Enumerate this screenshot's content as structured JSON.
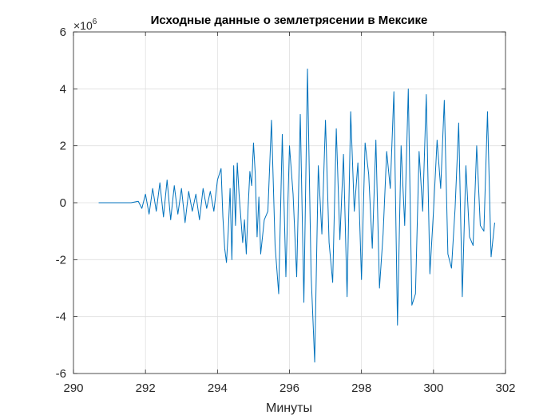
{
  "chart_data": {
    "type": "line",
    "title": "Исходные данные о землетрясении в Мексике",
    "xlabel": "Минуты",
    "ylabel": "",
    "xlim": [
      290,
      302
    ],
    "ylim": [
      -6000000,
      6000000
    ],
    "x_ticks": [
      290,
      292,
      294,
      296,
      298,
      300,
      302
    ],
    "y_ticks": [
      -6,
      -4,
      -2,
      0,
      2,
      4,
      6
    ],
    "y_exponent_label": "×10^6",
    "y_exponent_base": "×10",
    "y_exponent_power": "6",
    "grid": true,
    "line_color": "#0072BD",
    "series": [
      {
        "x": [
          290.7,
          291.2,
          291.6,
          291.8,
          291.9,
          292.0,
          292.1,
          292.2,
          292.3,
          292.4,
          292.5,
          292.6,
          292.7,
          292.8,
          292.9,
          293.0,
          293.1,
          293.2,
          293.3,
          293.4,
          293.5,
          293.6,
          293.7,
          293.8,
          293.9,
          294.0,
          294.1,
          294.15,
          294.2,
          294.25,
          294.3,
          294.35,
          294.4,
          294.45,
          294.5,
          294.55,
          294.6,
          294.7,
          294.75,
          294.8,
          294.85,
          294.9,
          294.95,
          295.0,
          295.05,
          295.1,
          295.15,
          295.2,
          295.3,
          295.4,
          295.5,
          295.6,
          295.7,
          295.8,
          295.9,
          296.0,
          296.1,
          296.2,
          296.3,
          296.4,
          296.5,
          296.6,
          296.7,
          296.8,
          296.9,
          297.0,
          297.1,
          297.2,
          297.3,
          297.4,
          297.5,
          297.6,
          297.7,
          297.8,
          297.9,
          298.0,
          298.1,
          298.2,
          298.3,
          298.4,
          298.5,
          298.6,
          298.7,
          298.8,
          298.9,
          299.0,
          299.1,
          299.2,
          299.3,
          299.4,
          299.5,
          299.6,
          299.7,
          299.8,
          299.9,
          300.0,
          300.1,
          300.2,
          300.3,
          300.4,
          300.5,
          300.6,
          300.7,
          300.8,
          300.9,
          301.0,
          301.1,
          301.2,
          301.3,
          301.4,
          301.5,
          301.6,
          301.7
        ],
        "values": [
          0,
          0,
          0,
          0.05,
          -0.2,
          0.3,
          -0.4,
          0.5,
          -0.3,
          0.7,
          -0.5,
          0.8,
          -0.6,
          0.6,
          -0.4,
          0.5,
          -0.7,
          0.4,
          -0.3,
          0.3,
          -0.6,
          0.5,
          -0.2,
          0.4,
          -0.3,
          0.8,
          1.2,
          -0.5,
          -1.6,
          -2.1,
          -1.0,
          0.5,
          -2.0,
          1.3,
          -0.8,
          1.4,
          0.3,
          -1.4,
          -0.6,
          -1.8,
          -0.2,
          1.1,
          0.6,
          2.1,
          1.0,
          -1.2,
          0.2,
          -1.8,
          -0.6,
          -0.3,
          2.9,
          -1.5,
          -3.2,
          2.4,
          -2.6,
          2.0,
          0.3,
          -2.6,
          3.1,
          -3.5,
          4.7,
          -2.5,
          -5.6,
          1.3,
          -1.1,
          2.9,
          -1.4,
          -2.8,
          2.6,
          -1.3,
          1.7,
          -3.3,
          3.2,
          -0.3,
          1.4,
          -2.7,
          2.1,
          1.0,
          -1.6,
          2.2,
          -3.0,
          -1.1,
          1.8,
          0.5,
          3.9,
          -4.3,
          2.0,
          -0.8,
          4.0,
          -3.6,
          -3.2,
          1.8,
          -0.3,
          3.8,
          -2.5,
          -0.3,
          2.2,
          0.5,
          3.6,
          -1.8,
          -2.3,
          -0.2,
          2.8,
          -3.3,
          1.3,
          -1.2,
          -1.5,
          2.0,
          -0.8,
          -1.0,
          3.2,
          -1.9,
          -0.7
        ]
      }
    ]
  }
}
